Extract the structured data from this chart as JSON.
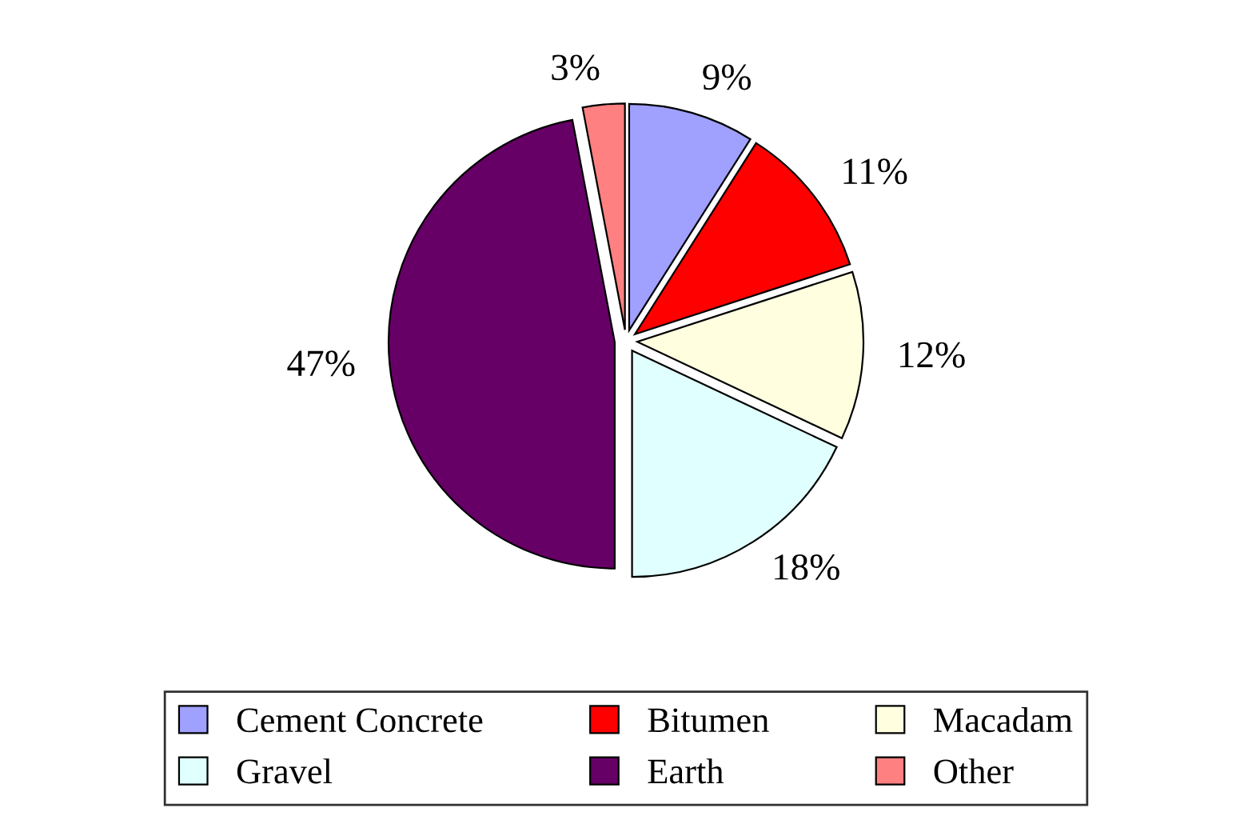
{
  "chart_data": {
    "type": "pie",
    "categories": [
      "Cement Concrete",
      "Bitumen",
      "Macadam",
      "Gravel",
      "Earth",
      "Other"
    ],
    "values": [
      9,
      11,
      12,
      18,
      47,
      3
    ],
    "colors": [
      "#a0a0ff",
      "#ff0000",
      "#ffffe0",
      "#e0ffff",
      "#660066",
      "#ff8080"
    ],
    "value_labels": [
      "9%",
      "11%",
      "12%",
      "18%",
      "47%",
      "3%"
    ],
    "legend": "bottom"
  }
}
